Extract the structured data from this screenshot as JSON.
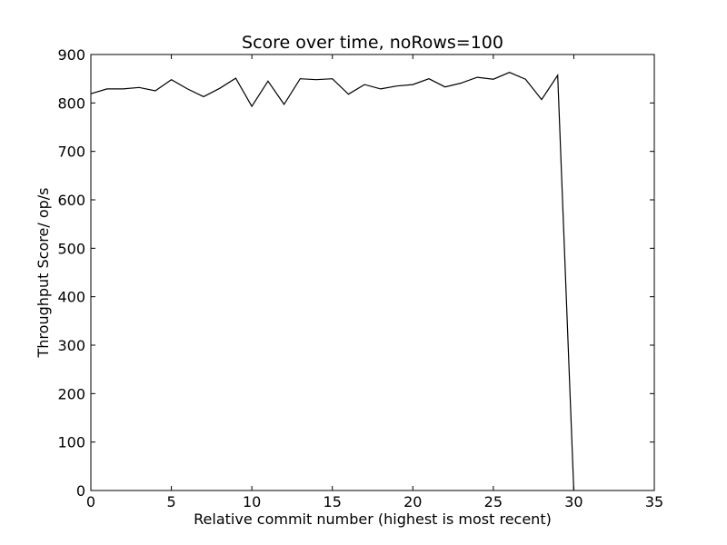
{
  "chart_data": {
    "type": "line",
    "title": "Score over time, noRows=100",
    "xlabel": "Relative commit number (highest is most recent)",
    "ylabel": "Throughput Score/ op/s",
    "xlim": [
      0,
      35
    ],
    "ylim": [
      0,
      900
    ],
    "xticks": [
      0,
      5,
      10,
      15,
      20,
      25,
      30,
      35
    ],
    "yticks": [
      0,
      100,
      200,
      300,
      400,
      500,
      600,
      700,
      800,
      900
    ],
    "grid": false,
    "line_color": "#000000",
    "series": [
      {
        "x": [
          0,
          1,
          2,
          3,
          4,
          5,
          6,
          7,
          8,
          9,
          10,
          11,
          12,
          13,
          14,
          15,
          16,
          17,
          18,
          19,
          20,
          21,
          22,
          23,
          24,
          25,
          26,
          27,
          28,
          29,
          30
        ],
        "values": [
          819,
          829,
          829,
          832,
          825,
          848,
          829,
          813,
          830,
          851,
          793,
          845,
          797,
          850,
          848,
          850,
          818,
          838,
          829,
          835,
          838,
          850,
          833,
          841,
          853,
          849,
          863,
          849,
          807,
          857,
          0
        ]
      }
    ]
  }
}
